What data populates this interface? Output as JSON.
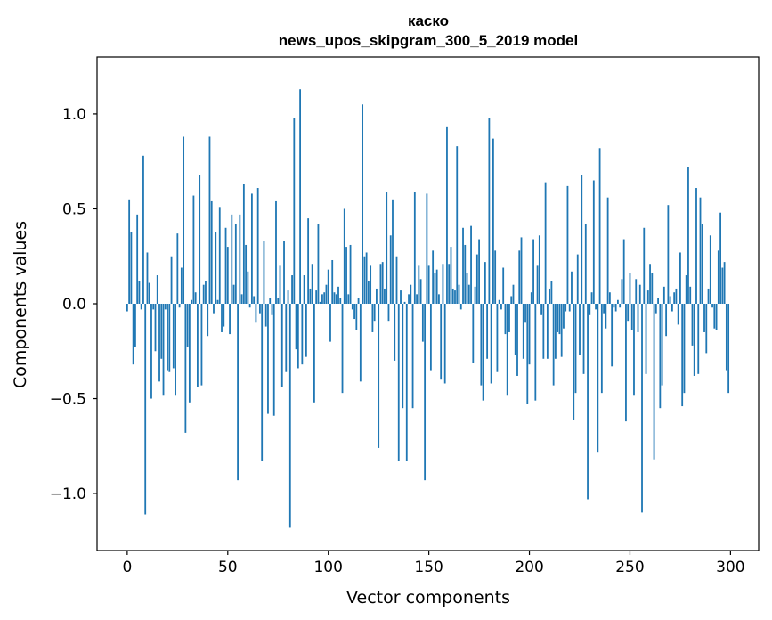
{
  "chart_data": {
    "type": "bar",
    "title": "каско",
    "subtitle": "news_upos_skipgram_300_5_2019 model",
    "xlabel": "Vector components",
    "ylabel": "Components values",
    "xlim": [
      -15,
      314
    ],
    "ylim": [
      -1.3,
      1.3
    ],
    "xticks": [
      0,
      50,
      100,
      150,
      200,
      250,
      300
    ],
    "yticks": [
      -1.0,
      -0.5,
      0.0,
      0.5,
      1.0
    ],
    "ytick_labels": [
      "−1.0",
      "−0.5",
      "0.0",
      "0.5",
      "1.0"
    ],
    "grid": false,
    "legend": "none",
    "bar_color": "#1f77b4",
    "x": "0..299",
    "values": [
      -0.04,
      0.55,
      0.38,
      -0.32,
      -0.23,
      0.47,
      0.12,
      -0.03,
      0.78,
      -1.11,
      0.27,
      0.11,
      -0.5,
      -0.03,
      -0.25,
      0.15,
      -0.41,
      -0.29,
      -0.48,
      -0.03,
      -0.35,
      -0.36,
      0.25,
      -0.34,
      -0.48,
      0.37,
      -0.02,
      0.19,
      0.88,
      -0.68,
      -0.23,
      -0.52,
      0.02,
      0.57,
      0.06,
      -0.44,
      0.68,
      -0.43,
      0.1,
      0.12,
      -0.17,
      0.88,
      0.54,
      -0.05,
      0.38,
      0.02,
      0.51,
      -0.15,
      -0.12,
      0.4,
      0.3,
      -0.16,
      0.47,
      0.1,
      0.42,
      -0.93,
      0.47,
      0.05,
      0.63,
      0.31,
      0.17,
      -0.02,
      0.58,
      0.04,
      -0.1,
      0.61,
      -0.05,
      -0.83,
      0.33,
      -0.12,
      -0.58,
      0.03,
      -0.06,
      -0.59,
      0.54,
      0.03,
      0.2,
      -0.44,
      0.33,
      -0.36,
      0.07,
      -1.18,
      0.15,
      0.98,
      -0.24,
      -0.34,
      1.13,
      -0.32,
      0.15,
      -0.28,
      0.45,
      0.08,
      0.21,
      -0.52,
      0.07,
      0.42,
      0.01,
      0.05,
      0.06,
      0.1,
      0.18,
      -0.2,
      0.23,
      0.06,
      0.05,
      0.09,
      0.03,
      -0.47,
      0.5,
      0.3,
      0.05,
      0.31,
      -0.03,
      -0.08,
      -0.14,
      0.03,
      -0.41,
      1.05,
      0.25,
      0.27,
      0.12,
      0.2,
      -0.15,
      -0.09,
      0.08,
      -0.76,
      0.21,
      0.22,
      0.08,
      0.59,
      -0.09,
      0.36,
      0.55,
      -0.3,
      0.25,
      -0.83,
      0.07,
      -0.55,
      0.01,
      -0.83,
      0.05,
      0.1,
      -0.55,
      0.59,
      0.05,
      0.2,
      0.13,
      -0.2,
      -0.93,
      0.58,
      0.2,
      -0.35,
      0.28,
      0.16,
      0.18,
      0.05,
      -0.4,
      0.21,
      -0.42,
      0.93,
      0.21,
      0.3,
      0.08,
      0.07,
      0.83,
      0.1,
      -0.03,
      0.4,
      0.31,
      0.16,
      0.1,
      0.41,
      -0.31,
      0.09,
      0.26,
      0.34,
      -0.43,
      -0.51,
      0.22,
      -0.29,
      0.98,
      -0.42,
      0.87,
      0.28,
      -0.36,
      0.02,
      -0.03,
      0.19,
      -0.16,
      -0.48,
      -0.15,
      0.04,
      0.1,
      -0.27,
      -0.38,
      0.28,
      0.35,
      -0.29,
      -0.1,
      -0.53,
      -0.32,
      0.06,
      0.34,
      -0.51,
      0.2,
      0.36,
      -0.06,
      -0.29,
      0.64,
      -0.29,
      0.08,
      0.12,
      -0.43,
      -0.29,
      -0.15,
      -0.16,
      -0.28,
      -0.13,
      -0.04,
      0.62,
      -0.04,
      0.17,
      -0.61,
      -0.47,
      0.26,
      -0.27,
      0.68,
      -0.37,
      0.42,
      -1.03,
      -0.06,
      0.06,
      0.65,
      -0.03,
      -0.78,
      0.82,
      -0.47,
      -0.05,
      -0.13,
      0.56,
      0.06,
      -0.33,
      -0.02,
      -0.04,
      0.02,
      -0.02,
      0.13,
      0.34,
      -0.62,
      -0.09,
      0.16,
      -0.14,
      -0.48,
      0.13,
      -0.15,
      0.1,
      -1.1,
      0.4,
      -0.37,
      0.07,
      0.21,
      0.16,
      -0.82,
      -0.05,
      0.03,
      -0.55,
      -0.43,
      0.09,
      -0.17,
      0.52,
      0.04,
      -0.04,
      0.06,
      0.08,
      -0.11,
      0.27,
      -0.54,
      -0.47,
      0.15,
      0.72,
      0.09,
      -0.22,
      -0.38,
      0.61,
      -0.37,
      0.56,
      0.42,
      -0.15,
      -0.26,
      0.08,
      0.36,
      -0.02,
      -0.13,
      -0.14,
      0.28,
      0.48,
      0.19,
      0.22,
      -0.35,
      -0.47
    ]
  }
}
